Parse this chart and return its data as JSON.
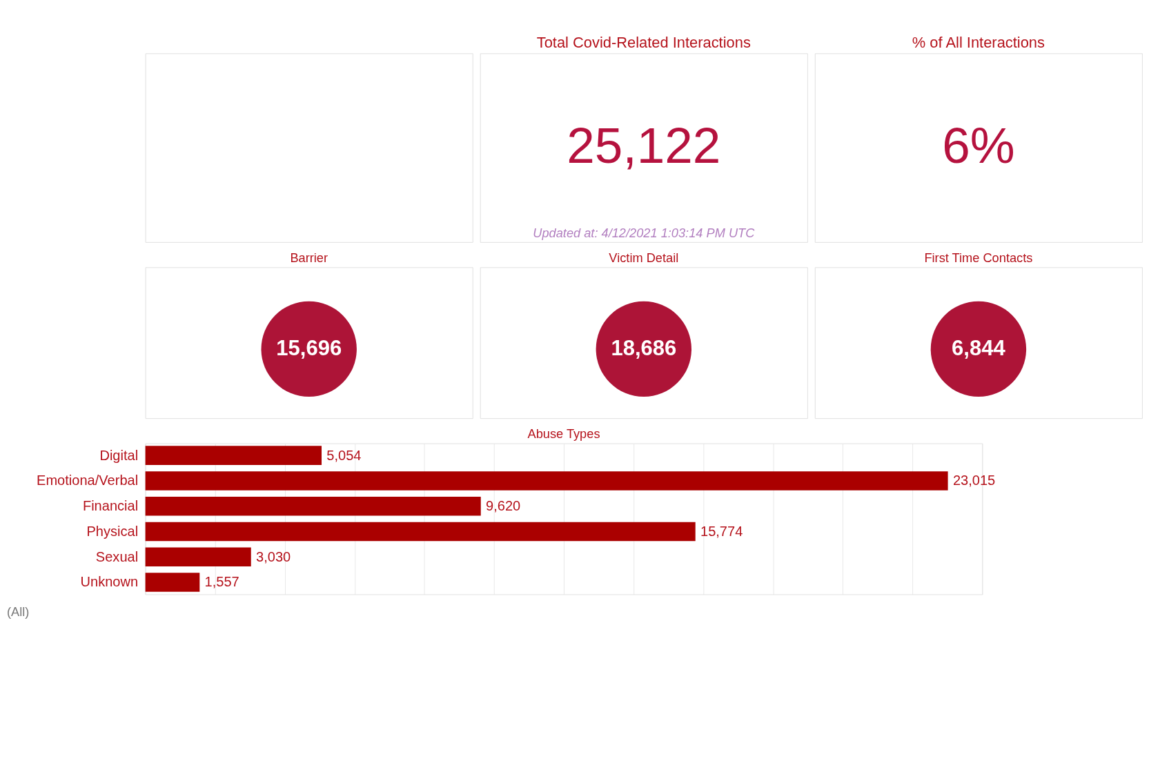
{
  "chart_data": [
    {
      "type": "other",
      "title": "Total Covid-Related Interactions",
      "values": [
        25122
      ],
      "value_labels": [
        "25,122"
      ],
      "color": "#b5123e",
      "annotations": [
        "Updated at: 4/12/2021 1:03:14 PM UTC"
      ]
    },
    {
      "type": "other",
      "title": "% of All Interactions",
      "values": [
        6
      ],
      "value_labels": [
        "6%"
      ],
      "color": "#b5123e"
    },
    {
      "type": "other",
      "title": "Barrier",
      "values": [
        15696
      ],
      "value_labels": [
        "15,696"
      ],
      "color": "#ad1437"
    },
    {
      "type": "other",
      "title": "Victim Detail",
      "values": [
        18686
      ],
      "value_labels": [
        "18,686"
      ],
      "color": "#ad1437"
    },
    {
      "type": "other",
      "title": "First Time Contacts",
      "values": [
        6844
      ],
      "value_labels": [
        "6,844"
      ],
      "color": "#ad1437"
    },
    {
      "type": "bar",
      "title": "Abuse Types",
      "orientation": "horizontal",
      "categories": [
        "Digital",
        "Emotiona/Verbal",
        "Financial",
        "Physical",
        "Sexual",
        "Unknown"
      ],
      "values": [
        5054,
        23015,
        9620,
        15774,
        3030,
        1557
      ],
      "value_labels": [
        "5,054",
        "23,015",
        "9,620",
        "15,774",
        "3,030",
        "1,557"
      ],
      "color": "#aa0000",
      "grid": "x",
      "tick_labels": "y",
      "annotations": [
        "(All)"
      ]
    }
  ]
}
